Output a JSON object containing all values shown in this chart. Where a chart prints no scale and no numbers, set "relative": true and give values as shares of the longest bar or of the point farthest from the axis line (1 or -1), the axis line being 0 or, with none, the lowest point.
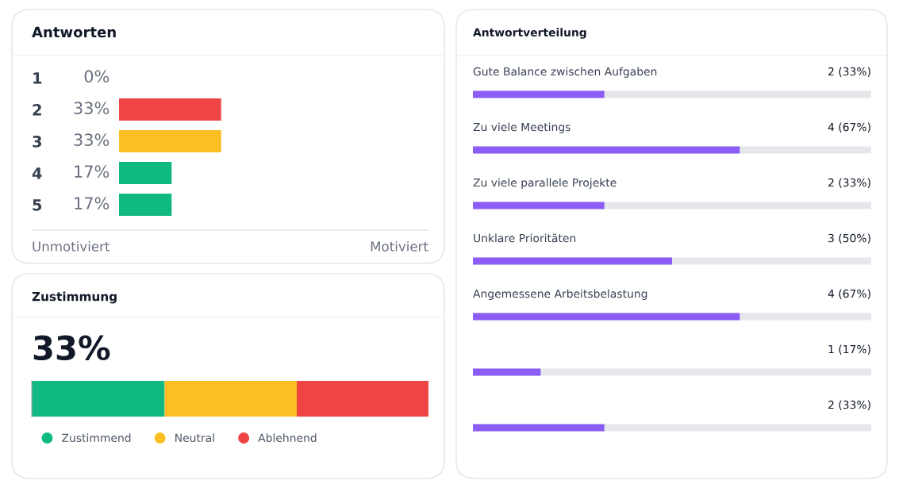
{
  "chart_data": [
    {
      "type": "bar",
      "orientation": "horizontal",
      "title": "Antworten",
      "categories": [
        "1",
        "2",
        "3",
        "4",
        "5"
      ],
      "values": [
        0,
        33,
        33,
        17,
        17
      ],
      "colors": [
        "#f3f4f6",
        "#ef4444",
        "#fbbf24",
        "#10b981",
        "#10b981"
      ],
      "value_labels": [
        "0%",
        "33%",
        "33%",
        "17%",
        "17%"
      ],
      "xlim": [
        0,
        100
      ],
      "tick_labels": "y",
      "annotations": [
        "Unmotiviert",
        "Motiviert"
      ]
    },
    {
      "type": "bar",
      "orientation": "horizontal",
      "title": "Antwortverteilung",
      "categories": [
        "Gute Balance zwischen Aufgaben",
        "Zu viele Meetings",
        "Zu viele parallele Projekte",
        "Unklare Prioritäten",
        "Angemessene Arbeitsbelastung",
        null,
        null
      ],
      "values": [
        33,
        67,
        33,
        50,
        67,
        17,
        33
      ],
      "color": "#8b5cf6",
      "value_labels": [
        "2 (33%)",
        "4 (67%)",
        "2 (33%)",
        "3 (50%)",
        "4 (67%)",
        "1 (17%)",
        "2 (33%)"
      ],
      "xlim": [
        0,
        100
      ],
      "tick_labels": "y"
    },
    {
      "type": "bar",
      "orientation": "horizontal",
      "stacked": true,
      "title": "Zustimmung",
      "subtitle": "33%",
      "categories": [
        null
      ],
      "series": [
        {
          "name": "Zustimmend",
          "color": "#10b981",
          "values": [
            0.335
          ]
        },
        {
          "name": "Neutral",
          "color": "#fbbf24",
          "values": [
            0.333
          ]
        },
        {
          "name": "Ablehnend",
          "color": "#ef4444",
          "values": [
            0.332
          ]
        }
      ],
      "relative": true,
      "tick_labels": false,
      "legend": "bottom"
    }
  ]
}
